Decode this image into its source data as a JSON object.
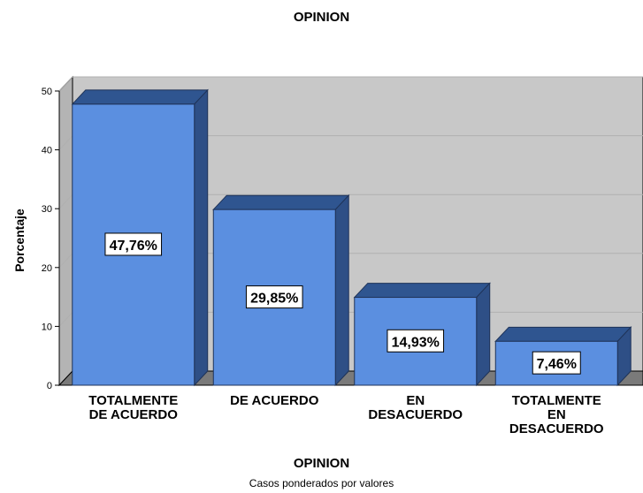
{
  "chart_data": {
    "type": "bar",
    "title": "OPINION",
    "xlabel": "OPINION",
    "ylabel": "Porcentaje",
    "note": "Casos ponderados por valores",
    "categories": [
      [
        "TOTALMENTE",
        "DE ACUERDO"
      ],
      [
        "DE ACUERDO"
      ],
      [
        "EN",
        "DESACUERDO"
      ],
      [
        "TOTALMENTE",
        "EN",
        "DESACUERDO"
      ]
    ],
    "values": [
      47.76,
      29.85,
      14.93,
      7.46
    ],
    "data_labels": [
      "47,76%",
      "29,85%",
      "14,93%",
      "7,46%"
    ],
    "ylim": [
      0,
      50
    ],
    "yticks": [
      0,
      10,
      20,
      30,
      40,
      50
    ],
    "ytick_labels": [
      "0",
      "10",
      "20",
      "30",
      "40",
      "50"
    ],
    "grid": true,
    "style": "3d",
    "colors": {
      "bar_front": "#5b8fe0",
      "bar_side": "#2e4f86",
      "bar_top": "#2f5590",
      "bar_edge": "#1f3358",
      "plot_back": "#c8c8c8",
      "plot_side": "#b4b4b4",
      "floor": "#7a7a7a",
      "gridline": "#b0b0b0",
      "axis": "#000000"
    }
  }
}
